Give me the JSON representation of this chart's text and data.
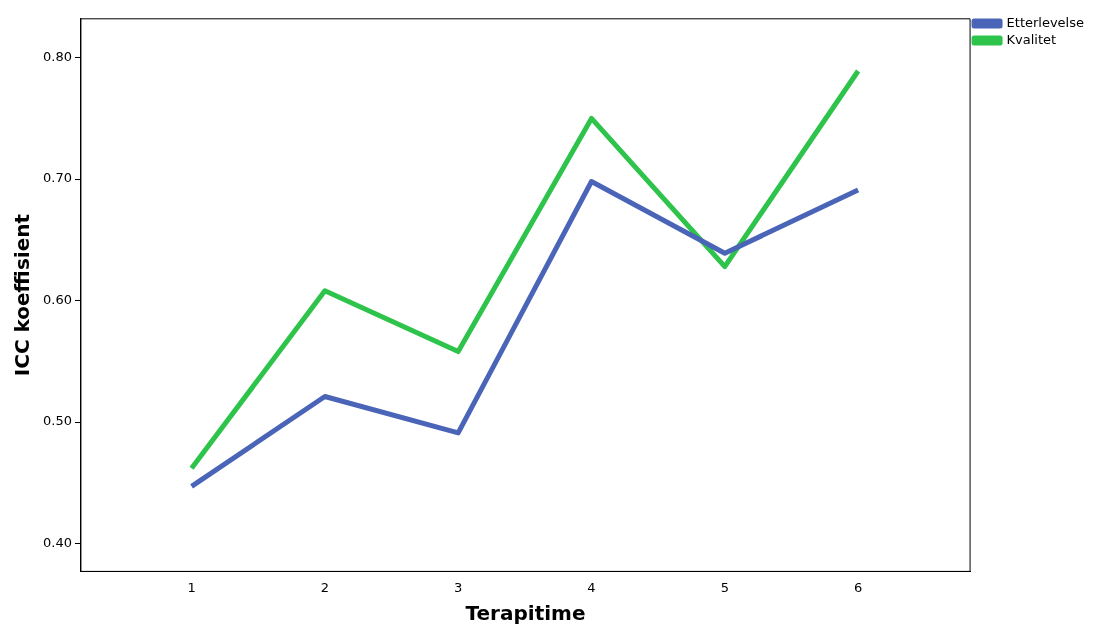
{
  "chart_data": {
    "type": "line",
    "xlabel": "Terapitime",
    "ylabel": "ICC koeffisient",
    "x": [
      1,
      2,
      3,
      4,
      5,
      6
    ],
    "xlim": [
      0.17,
      6.84
    ],
    "xticks": [
      1,
      2,
      3,
      4,
      5,
      6
    ],
    "ylim": [
      0.377,
      0.832
    ],
    "yticks": [
      {
        "value": 0.4,
        "label": "0.40"
      },
      {
        "value": 0.5,
        "label": "0.50"
      },
      {
        "value": 0.6,
        "label": "0.60"
      },
      {
        "value": 0.7,
        "label": "0.70"
      },
      {
        "value": 0.8,
        "label": "0.80"
      }
    ],
    "series": [
      {
        "name": "Etterlevelse",
        "color": "#4a64b8",
        "values": [
          0.447,
          0.521,
          0.491,
          0.698,
          0.639,
          0.691
        ]
      },
      {
        "name": "Kvalitet",
        "color": "#2ec34a",
        "values": [
          0.462,
          0.608,
          0.558,
          0.75,
          0.628,
          0.789
        ]
      }
    ],
    "grid": false,
    "legend": "top right",
    "marker": "none",
    "line_style": "solid"
  }
}
